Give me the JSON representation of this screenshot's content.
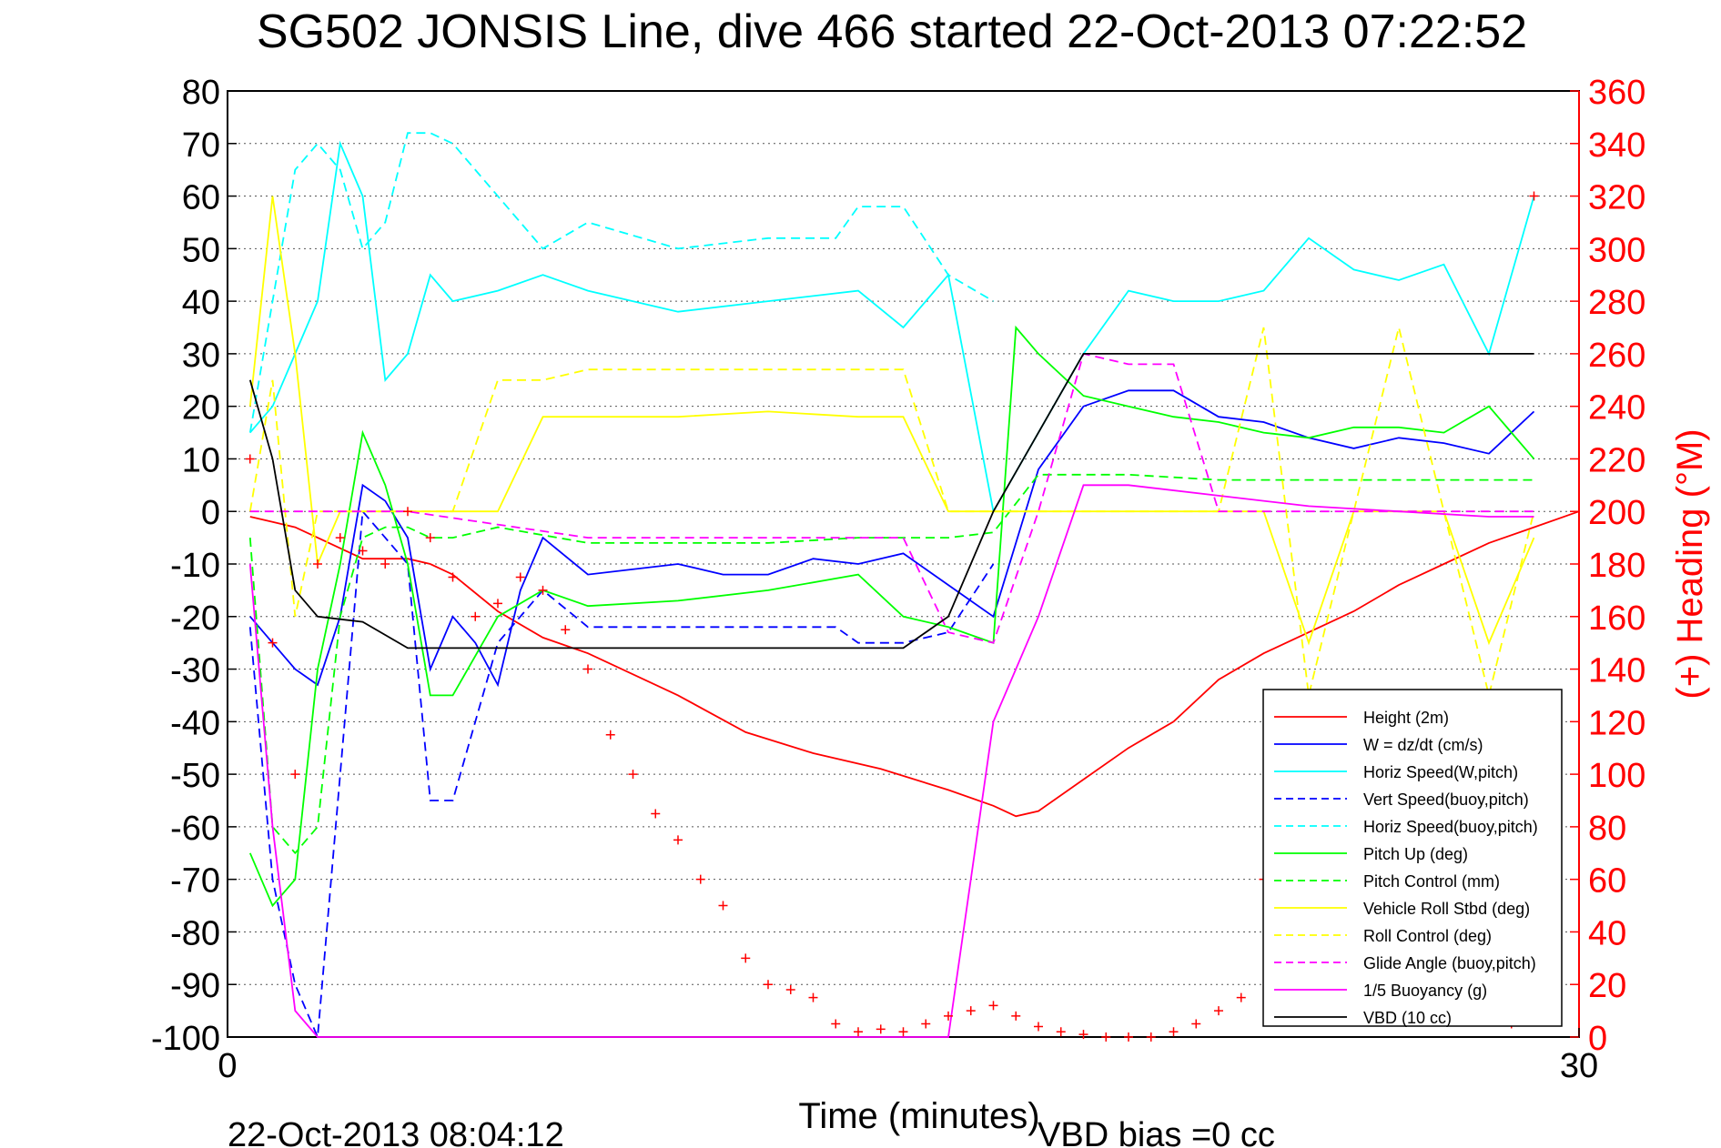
{
  "chart_data": {
    "type": "line",
    "title": "SG502 JONSIS Line, dive 466 started 22-Oct-2013 07:22:52",
    "xlabel": "Time (minutes)",
    "ylabel_right": "(+) Heading (°M)",
    "footer_left": "22-Oct-2013 08:04:12",
    "footer_right": "VBD bias =0 cc",
    "xlim": [
      0,
      30
    ],
    "ylim": [
      -100,
      80
    ],
    "ylim_right": [
      0,
      360
    ],
    "x_ticks": [
      "0",
      "30"
    ],
    "y_ticks": [
      "80",
      "70",
      "60",
      "50",
      "40",
      "30",
      "20",
      "10",
      "0",
      "-10",
      "-20",
      "-30",
      "-40",
      "-50",
      "-60",
      "-70",
      "-80",
      "-90",
      "-100"
    ],
    "y_right_ticks": [
      "360",
      "340",
      "320",
      "300",
      "280",
      "260",
      "240",
      "220",
      "200",
      "180",
      "160",
      "140",
      "120",
      "100",
      "80",
      "60",
      "40",
      "20",
      "0"
    ],
    "grid": true,
    "legend_position": "bottom-right",
    "colors": {
      "height": "#ff0000",
      "w": "#0000ff",
      "horiz_w": "#00ffff",
      "vert_buoy": "#0000ff",
      "horiz_buoy": "#00ffff",
      "pitch_up": "#00ff00",
      "pitch_ctrl": "#00ff00",
      "roll": "#ffff00",
      "roll_ctrl": "#ffff00",
      "glide": "#ff00ff",
      "buoyancy": "#ff00ff",
      "vbd": "#000000",
      "heading": "#ff0000",
      "right_axis": "#ff0000"
    },
    "series": [
      {
        "name": "Height (2m)",
        "color": "#ff0000",
        "dash": false,
        "x": [
          0.5,
          1,
          1.5,
          2,
          2.5,
          3,
          3.5,
          4,
          4.5,
          5,
          6,
          7,
          8,
          10,
          11.5,
          13,
          14.5,
          16,
          17,
          17.5,
          18,
          19,
          20,
          21,
          22,
          23,
          24,
          25,
          26,
          27,
          28,
          29,
          30
        ],
        "y": [
          -1,
          -2,
          -3,
          -5,
          -7,
          -9,
          -9,
          -9,
          -10,
          -12,
          -19,
          -24,
          -27,
          -35,
          -42,
          -46,
          -49,
          -53,
          -56,
          -58,
          -57,
          -51,
          -45,
          -40,
          -32,
          -27,
          -23,
          -19,
          -14,
          -10,
          -6,
          -3,
          0
        ]
      },
      {
        "name": "W = dz/dt (cm/s)",
        "color": "#0000ff",
        "dash": false,
        "x": [
          0.5,
          1,
          1.5,
          2,
          2.5,
          3,
          3.5,
          4,
          4.5,
          5,
          5.5,
          6,
          6.5,
          7,
          8,
          10,
          11,
          12,
          13,
          14,
          15,
          16,
          17,
          18,
          19,
          20,
          21,
          22,
          23,
          24,
          25,
          26,
          27,
          28,
          29
        ],
        "y": [
          -20,
          -25,
          -30,
          -33,
          -20,
          5,
          2,
          -5,
          -30,
          -20,
          -25,
          -33,
          -15,
          -5,
          -12,
          -10,
          -12,
          -12,
          -9,
          -10,
          -8,
          -14,
          -20,
          8,
          20,
          23,
          23,
          18,
          17,
          14,
          12,
          14,
          13,
          11,
          19
        ]
      },
      {
        "name": "Horiz Speed(W,pitch)",
        "color": "#00ffff",
        "dash": false,
        "x": [
          0.5,
          1,
          1.5,
          2,
          2.5,
          3,
          3.5,
          4,
          4.5,
          5,
          6,
          7,
          8,
          10,
          12,
          14,
          15,
          16,
          17,
          18,
          19,
          20,
          21,
          22,
          23,
          24,
          25,
          26,
          27,
          28,
          29
        ],
        "y": [
          15,
          20,
          30,
          40,
          70,
          60,
          25,
          30,
          45,
          40,
          42,
          45,
          42,
          38,
          40,
          42,
          35,
          45,
          0,
          15,
          30,
          42,
          40,
          40,
          42,
          52,
          46,
          44,
          47,
          30,
          60
        ]
      },
      {
        "name": "Vert Speed(buoy,pitch)",
        "color": "#0000ff",
        "dash": true,
        "x": [
          0.5,
          1,
          1.5,
          2,
          2.5,
          3,
          3.5,
          4,
          4.5,
          5,
          6,
          7,
          8,
          10,
          12,
          13.5,
          14,
          15,
          16,
          17
        ],
        "y": [
          -22,
          -70,
          -90,
          -100,
          -50,
          0,
          -5,
          -10,
          -55,
          -55,
          -25,
          -15,
          -22,
          -22,
          -22,
          -22,
          -25,
          -25,
          -23,
          -10
        ]
      },
      {
        "name": "Horiz Speed(buoy,pitch)",
        "color": "#00ffff",
        "dash": true,
        "x": [
          0.5,
          1,
          1.5,
          2,
          2.5,
          3,
          3.5,
          4,
          4.5,
          5,
          6,
          7,
          8,
          10,
          12,
          13.5,
          14,
          15,
          16,
          17
        ],
        "y": [
          15,
          40,
          65,
          70,
          65,
          50,
          55,
          72,
          72,
          70,
          60,
          50,
          55,
          50,
          52,
          52,
          58,
          58,
          45,
          40
        ]
      },
      {
        "name": "Pitch Up (deg)",
        "color": "#00ff00",
        "dash": false,
        "x": [
          0.5,
          1,
          1.5,
          2,
          2.5,
          3,
          3.5,
          4,
          4.5,
          5,
          6,
          7,
          8,
          10,
          12,
          14,
          15,
          16,
          17,
          17.5,
          18,
          19,
          20,
          21,
          22,
          23,
          24,
          25,
          26,
          27,
          28,
          29
        ],
        "y": [
          -65,
          -75,
          -70,
          -30,
          -10,
          15,
          5,
          -10,
          -35,
          -35,
          -20,
          -15,
          -18,
          -17,
          -15,
          -12,
          -20,
          -22,
          -25,
          35,
          30,
          22,
          20,
          18,
          17,
          15,
          14,
          16,
          16,
          15,
          20,
          10
        ]
      },
      {
        "name": "Pitch Control (mm)",
        "color": "#00ff00",
        "dash": true,
        "x": [
          0.5,
          1,
          1.5,
          2,
          2.5,
          3,
          3.5,
          4,
          4.5,
          5,
          6,
          8,
          10,
          12,
          14,
          15,
          16,
          17,
          18,
          19,
          20,
          22,
          24,
          26,
          28,
          29
        ],
        "y": [
          -5,
          -60,
          -65,
          -60,
          -20,
          -5,
          -3,
          -3,
          -5,
          -5,
          -3,
          -6,
          -6,
          -6,
          -5,
          -5,
          -5,
          -4,
          7,
          7,
          7,
          6,
          6,
          6,
          6,
          6
        ]
      },
      {
        "name": "Vehicle Roll Stbd (deg)",
        "color": "#ffff00",
        "dash": false,
        "x": [
          0.5,
          1,
          1.5,
          2,
          2.5,
          3,
          4,
          5,
          6,
          7,
          8,
          10,
          12,
          14,
          15,
          16,
          17,
          18,
          19,
          20,
          21,
          22,
          23,
          24,
          25,
          26,
          27,
          28,
          29
        ],
        "y": [
          20,
          60,
          30,
          -10,
          0,
          0,
          0,
          0,
          0,
          18,
          18,
          18,
          19,
          18,
          18,
          0,
          0,
          0,
          0,
          0,
          0,
          0,
          0,
          -25,
          0,
          0,
          0,
          -25,
          -5
        ]
      },
      {
        "name": "Roll Control (deg)",
        "color": "#ffff00",
        "dash": true,
        "x": [
          0.5,
          1,
          1.5,
          2,
          3,
          4,
          5,
          6,
          7,
          8,
          10,
          12,
          14,
          15,
          16,
          17,
          18,
          20,
          22,
          23,
          24,
          25,
          26,
          27,
          28,
          29
        ],
        "y": [
          0,
          25,
          -20,
          0,
          0,
          0,
          0,
          25,
          25,
          27,
          27,
          27,
          27,
          27,
          0,
          0,
          0,
          0,
          0,
          35,
          -35,
          0,
          35,
          0,
          -35,
          0
        ]
      },
      {
        "name": "Glide Angle (buoy,pitch)",
        "color": "#ff00ff",
        "dash": true,
        "x": [
          0.5,
          4,
          8,
          12,
          14,
          15,
          16,
          17,
          18,
          19,
          20,
          21,
          22,
          24,
          26,
          28,
          29
        ],
        "y": [
          0,
          0,
          -5,
          -5,
          -5,
          -5,
          -23,
          -25,
          0,
          30,
          28,
          28,
          0,
          0,
          0,
          0,
          0
        ]
      },
      {
        "name": "1/5 Buoyancy (g)",
        "color": "#ff00ff",
        "dash": false,
        "x": [
          0.5,
          1,
          1.5,
          2,
          3,
          8,
          12,
          15,
          16,
          17,
          18,
          19,
          20,
          22,
          24,
          26,
          28,
          29
        ],
        "y": [
          -10,
          -60,
          -95,
          -100,
          -100,
          -100,
          -100,
          -100,
          -100,
          -40,
          -20,
          5,
          5,
          3,
          1,
          0,
          -1,
          -1
        ]
      },
      {
        "name": "VBD (10 cc)",
        "color": "#000000",
        "dash": false,
        "x": [
          0.5,
          1,
          1.5,
          2,
          3,
          4,
          5,
          6,
          8,
          10,
          12,
          14,
          15,
          16,
          17,
          18,
          19,
          20,
          22,
          24,
          26,
          28,
          29
        ],
        "y": [
          25,
          10,
          -15,
          -20,
          -21,
          -26,
          -26,
          -26,
          -26,
          -26,
          -26,
          -26,
          -26,
          -20,
          0,
          15,
          30,
          30,
          30,
          30,
          30,
          30,
          30
        ]
      }
    ],
    "heading_points": {
      "name": "Heading",
      "color": "#ff0000",
      "x": [
        0.5,
        1,
        1.5,
        2,
        2.5,
        3,
        3.5,
        4,
        4.5,
        5,
        5.5,
        6,
        6.5,
        7,
        7.5,
        8,
        8.5,
        9,
        9.5,
        10,
        10.5,
        11,
        11.5,
        12,
        12.5,
        13,
        13.5,
        14,
        14.5,
        15,
        15.5,
        16,
        16.5,
        17,
        17.5,
        18,
        18.5,
        19,
        19.5,
        20,
        20.5,
        21,
        21.5,
        22,
        22.5,
        23,
        23.5,
        24,
        24.5,
        25,
        25.5,
        26,
        26.5,
        27,
        27.5,
        28,
        28.5,
        29
      ],
      "y": [
        220,
        150,
        100,
        180,
        190,
        185,
        180,
        200,
        190,
        175,
        160,
        165,
        175,
        170,
        155,
        140,
        115,
        100,
        85,
        75,
        60,
        50,
        30,
        20,
        18,
        15,
        5,
        2,
        3,
        2,
        5,
        8,
        10,
        12,
        8,
        4,
        2,
        1,
        0,
        0,
        0,
        2,
        5,
        10,
        15,
        60,
        80,
        85,
        70,
        55,
        40,
        30,
        20,
        15,
        12,
        10,
        5,
        320
      ]
    }
  }
}
